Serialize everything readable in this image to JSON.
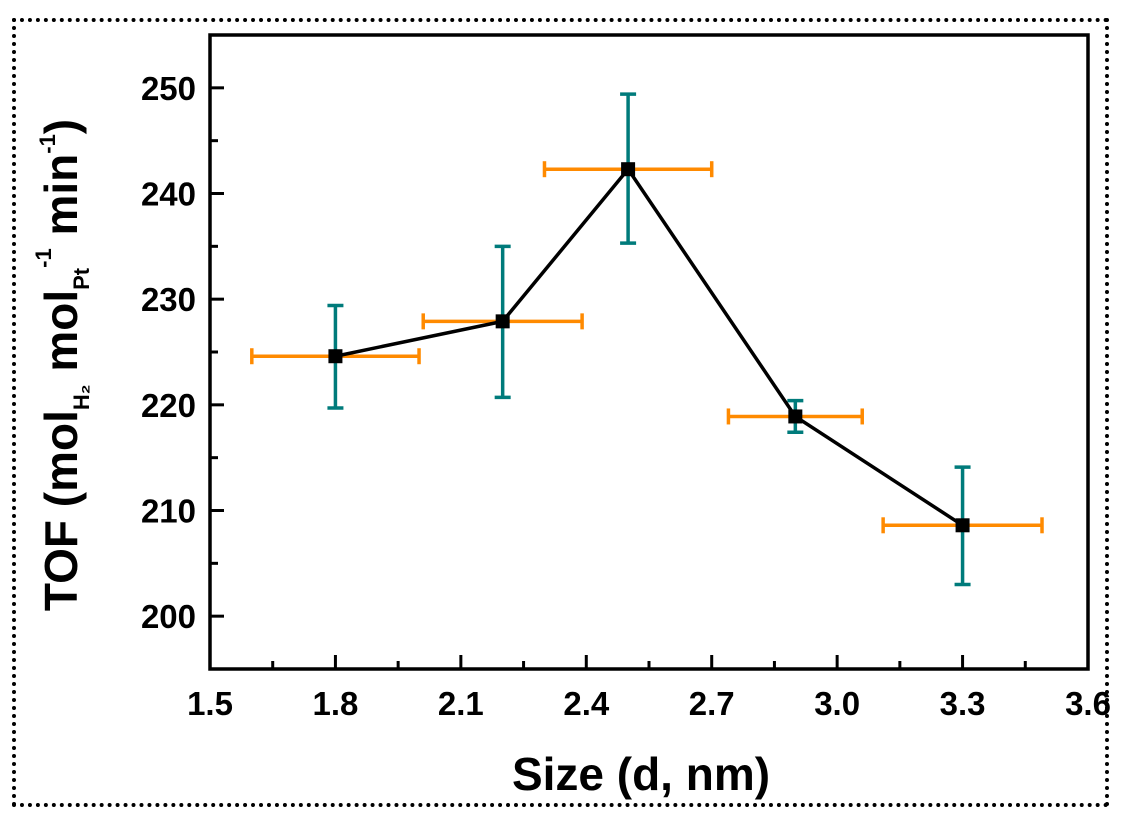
{
  "chart_data": {
    "type": "scatter",
    "title": "",
    "xlabel": "Size (d, nm)",
    "ylabel": {
      "prefix": "TOF (mol",
      "sub1": "H₂",
      "mid": " mol",
      "sub2": "Pt",
      "sup1": "-1",
      "tail": " min",
      "sup2": "-1",
      "close": ")"
    },
    "xlim": [
      1.5,
      3.6
    ],
    "ylim": [
      195,
      255
    ],
    "xticks": [
      1.5,
      1.8,
      2.1,
      2.4,
      2.7,
      3.0,
      3.3,
      3.6
    ],
    "xtick_labels": [
      "1.5",
      "1.8",
      "2.1",
      "2.4",
      "2.7",
      "3.0",
      "3.3",
      "3.6"
    ],
    "yticks": [
      200,
      210,
      220,
      230,
      240,
      250
    ],
    "ytick_labels": [
      "200",
      "210",
      "220",
      "230",
      "240",
      "250"
    ],
    "series": [
      {
        "name": "TOF",
        "x": [
          1.8,
          2.2,
          2.5,
          2.9,
          3.3
        ],
        "y": [
          224.6,
          227.9,
          242.3,
          218.9,
          208.6
        ],
        "x_err": [
          [
            1.6,
            2.0
          ],
          [
            2.01,
            2.39
          ],
          [
            2.3,
            2.7
          ],
          [
            2.74,
            3.06
          ],
          [
            3.11,
            3.49
          ]
        ],
        "y_err": [
          [
            219.7,
            229.4
          ],
          [
            220.7,
            235.0
          ],
          [
            235.3,
            249.4
          ],
          [
            217.4,
            220.4
          ],
          [
            203.0,
            214.1
          ]
        ]
      }
    ],
    "colors": {
      "line": "#000000",
      "marker": "#000000",
      "x_error": "#ff8a00",
      "y_error": "#007b7b"
    }
  }
}
